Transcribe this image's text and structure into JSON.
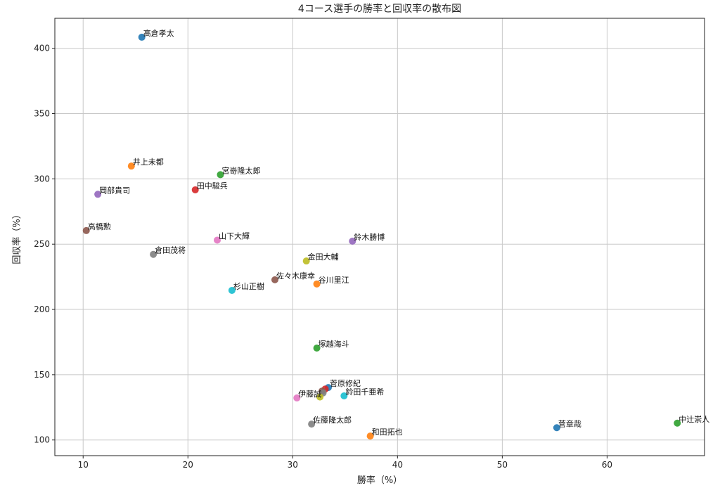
{
  "chart_data": {
    "type": "scatter",
    "title": "4コース選手の勝率と回収率の散布図",
    "xlabel": "勝率（%）",
    "ylabel": "回収率（%）",
    "xlim": [
      7.3,
      69.3
    ],
    "ylim": [
      88,
      423
    ],
    "xticks": [
      10,
      20,
      30,
      40,
      50,
      60
    ],
    "yticks": [
      100,
      150,
      200,
      250,
      300,
      350,
      400
    ],
    "grid": true,
    "points": [
      {
        "label": "高倉孝太",
        "x": 15.6,
        "y": 408.5,
        "color": "#1f77b4"
      },
      {
        "label": "井上未都",
        "x": 14.6,
        "y": 309.8,
        "color": "#ff7f0e"
      },
      {
        "label": "宮嵜隆太郎",
        "x": 23.1,
        "y": 303.2,
        "color": "#2ca02c"
      },
      {
        "label": "田中駿兵",
        "x": 20.7,
        "y": 291.6,
        "color": "#d62728"
      },
      {
        "label": "岡部貴司",
        "x": 11.4,
        "y": 288.2,
        "color": "#9467bd"
      },
      {
        "label": "高橋勲",
        "x": 10.3,
        "y": 260.4,
        "color": "#8c564b"
      },
      {
        "label": "山下大輝",
        "x": 22.8,
        "y": 253.1,
        "color": "#e377c2"
      },
      {
        "label": "倉田茂将",
        "x": 16.7,
        "y": 242.2,
        "color": "#7f7f7f"
      },
      {
        "label": "金田大輔",
        "x": 31.3,
        "y": 237.1,
        "color": "#bcbd22"
      },
      {
        "label": "杉山正樹",
        "x": 24.2,
        "y": 214.6,
        "color": "#17becf"
      },
      {
        "label": "鈴木勝博",
        "x": 35.7,
        "y": 252.3,
        "color": "#9467bd"
      },
      {
        "label": "佐々木康幸",
        "x": 28.3,
        "y": 222.7,
        "color": "#8c564b"
      },
      {
        "label": "谷川里江",
        "x": 32.3,
        "y": 219.5,
        "color": "#ff7f0e"
      },
      {
        "label": "塚越海斗",
        "x": 32.3,
        "y": 170.4,
        "color": "#2ca02c"
      },
      {
        "label": "菅原修紀",
        "x": 33.4,
        "y": 140.2,
        "color": "#1f77b4"
      },
      {
        "label": "",
        "x": 33.1,
        "y": 139.0,
        "color": "#d62728"
      },
      {
        "label": "",
        "x": 32.8,
        "y": 137.5,
        "color": "#8c564b"
      },
      {
        "label": "",
        "x": 32.9,
        "y": 136.1,
        "color": "#7f7f7f"
      },
      {
        "label": "鈴田千亜希",
        "x": 34.9,
        "y": 133.8,
        "color": "#17becf"
      },
      {
        "label": "",
        "x": 32.6,
        "y": 132.9,
        "color": "#bcbd22"
      },
      {
        "label": "伊藤誠",
        "x": 30.4,
        "y": 132.2,
        "color": "#e377c2"
      },
      {
        "label": "佐藤隆太郎",
        "x": 31.8,
        "y": 112.2,
        "color": "#7f7f7f"
      },
      {
        "label": "和田拓也",
        "x": 37.4,
        "y": 103.0,
        "color": "#ff7f0e"
      },
      {
        "label": "菅章哉",
        "x": 55.2,
        "y": 109.4,
        "color": "#1f77b4"
      },
      {
        "label": "中辻崇人",
        "x": 66.7,
        "y": 112.9,
        "color": "#2ca02c"
      }
    ]
  }
}
